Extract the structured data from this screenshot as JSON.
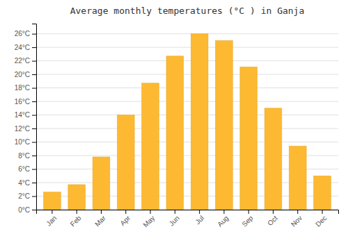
{
  "chart_data": {
    "type": "bar",
    "title": "Average monthly temperatures (°C ) in Ganja",
    "categories": [
      "Jan",
      "Feb",
      "Mar",
      "Apr",
      "May",
      "Jun",
      "Jul",
      "Aug",
      "Sep",
      "Oct",
      "Nov",
      "Dec"
    ],
    "values": [
      2.6,
      3.7,
      7.8,
      14.0,
      18.7,
      22.7,
      26.0,
      25.0,
      21.1,
      15.0,
      9.4,
      5.0
    ],
    "color": "#FDB931",
    "ylim": [
      0,
      27.5
    ],
    "yticks": [
      {
        "value": 0,
        "label": "0°C"
      },
      {
        "value": 2,
        "label": "2°C"
      },
      {
        "value": 4,
        "label": "4°C"
      },
      {
        "value": 6,
        "label": "6°C"
      },
      {
        "value": 8,
        "label": "8°C"
      },
      {
        "value": 10,
        "label": "10°C"
      },
      {
        "value": 12,
        "label": "12°C"
      },
      {
        "value": 14,
        "label": "14°C"
      },
      {
        "value": 16,
        "label": "16°C"
      },
      {
        "value": 18,
        "label": "18°C"
      },
      {
        "value": 20,
        "label": "20°C"
      },
      {
        "value": 22,
        "label": "22°C"
      },
      {
        "value": 24,
        "label": "24°C"
      },
      {
        "value": 26,
        "label": "26°C"
      }
    ],
    "grid": true
  }
}
